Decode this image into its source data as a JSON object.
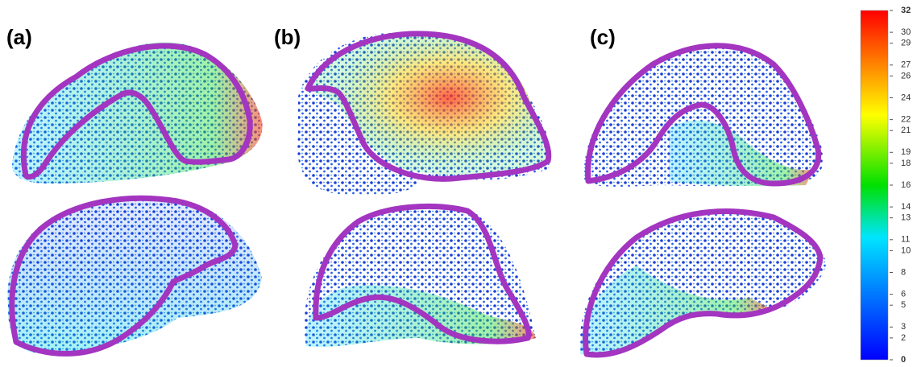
{
  "panels": [
    {
      "label": "(a)"
    },
    {
      "label": "(b)"
    },
    {
      "label": "(c)"
    }
  ],
  "colorbar": {
    "range": [
      0,
      32
    ],
    "ticks": [
      32,
      30,
      29,
      27,
      26,
      24,
      22,
      21,
      19,
      18,
      16,
      14,
      13,
      11,
      10,
      8,
      6,
      5,
      3,
      2,
      0
    ]
  }
}
